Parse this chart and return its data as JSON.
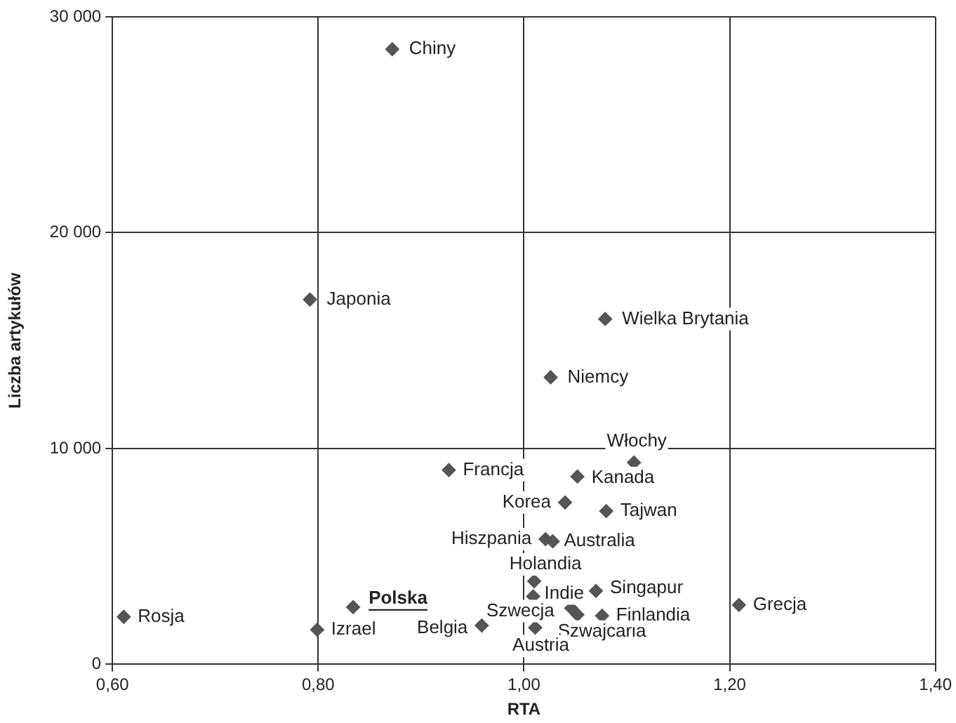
{
  "chart_data": {
    "type": "scatter",
    "xlabel": "RTA",
    "ylabel": "Liczba artykułów",
    "xlim": [
      0.6,
      1.4
    ],
    "ylim": [
      0,
      30000
    ],
    "xticks": [
      {
        "value": 0.6,
        "label": "0,60"
      },
      {
        "value": 0.8,
        "label": "0,80"
      },
      {
        "value": 1.0,
        "label": "1,00"
      },
      {
        "value": 1.2,
        "label": "1,20"
      },
      {
        "value": 1.4,
        "label": "1,40"
      }
    ],
    "yticks": [
      0,
      {
        "value": 10000,
        "label": "10 000"
      },
      {
        "value": 20000,
        "label": "20 000"
      },
      {
        "value": 30000,
        "label": "30 000"
      }
    ],
    "grid": true,
    "legend": false,
    "marker": "diamond",
    "series": [
      {
        "color": "#555555",
        "x": [
          0.872,
          0.792,
          1.079,
          1.026,
          1.107,
          1.052,
          0.927,
          1.04,
          1.08,
          1.021,
          1.028,
          1.01,
          1.009,
          1.07,
          1.046,
          1.052,
          1.076,
          1.011,
          0.959,
          0.834,
          0.799,
          1.209,
          0.611
        ],
        "values": [
          28500,
          16900,
          16000,
          13300,
          9350,
          8700,
          9000,
          7500,
          7100,
          5800,
          5700,
          3850,
          3150,
          3400,
          2600,
          2300,
          2250,
          1700,
          1800,
          2650,
          1600,
          2750,
          2200
        ]
      }
    ],
    "annotations": [
      {
        "text": "Chiny",
        "x": 0.872,
        "y": 28500
      },
      {
        "text": "Japonia",
        "x": 0.792,
        "y": 16900
      },
      {
        "text": "Wielka Brytania",
        "x": 1.079,
        "y": 16000
      },
      {
        "text": "Niemcy",
        "x": 1.026,
        "y": 13300
      },
      {
        "text": "Włochy",
        "x": 1.107,
        "y": 9350
      },
      {
        "text": "Kanada",
        "x": 1.052,
        "y": 8700
      },
      {
        "text": "Francja",
        "x": 0.927,
        "y": 9000
      },
      {
        "text": "Korea",
        "x": 1.04,
        "y": 7500
      },
      {
        "text": "Tajwan",
        "x": 1.08,
        "y": 7100
      },
      {
        "text": "Hiszpania",
        "x": 1.021,
        "y": 5800
      },
      {
        "text": "Australia",
        "x": 1.028,
        "y": 5700
      },
      {
        "text": "Holandia",
        "x": 1.01,
        "y": 3850
      },
      {
        "text": "Indie",
        "x": 1.009,
        "y": 3150
      },
      {
        "text": "Singapur",
        "x": 1.07,
        "y": 3400
      },
      {
        "text": "Szwecja",
        "x": 1.046,
        "y": 2600
      },
      {
        "text": "Szwajcaria",
        "x": 1.052,
        "y": 2300
      },
      {
        "text": "Finlandia",
        "x": 1.076,
        "y": 2250
      },
      {
        "text": "Austria",
        "x": 1.011,
        "y": 1700
      },
      {
        "text": "Belgia",
        "x": 0.959,
        "y": 1800
      },
      {
        "text": "Polska",
        "x": 0.834,
        "y": 2650
      },
      {
        "text": "Izrael",
        "x": 0.799,
        "y": 1600
      },
      {
        "text": "Grecja",
        "x": 1.209,
        "y": 2750
      },
      {
        "text": "Rosja",
        "x": 0.611,
        "y": 2200
      }
    ]
  }
}
